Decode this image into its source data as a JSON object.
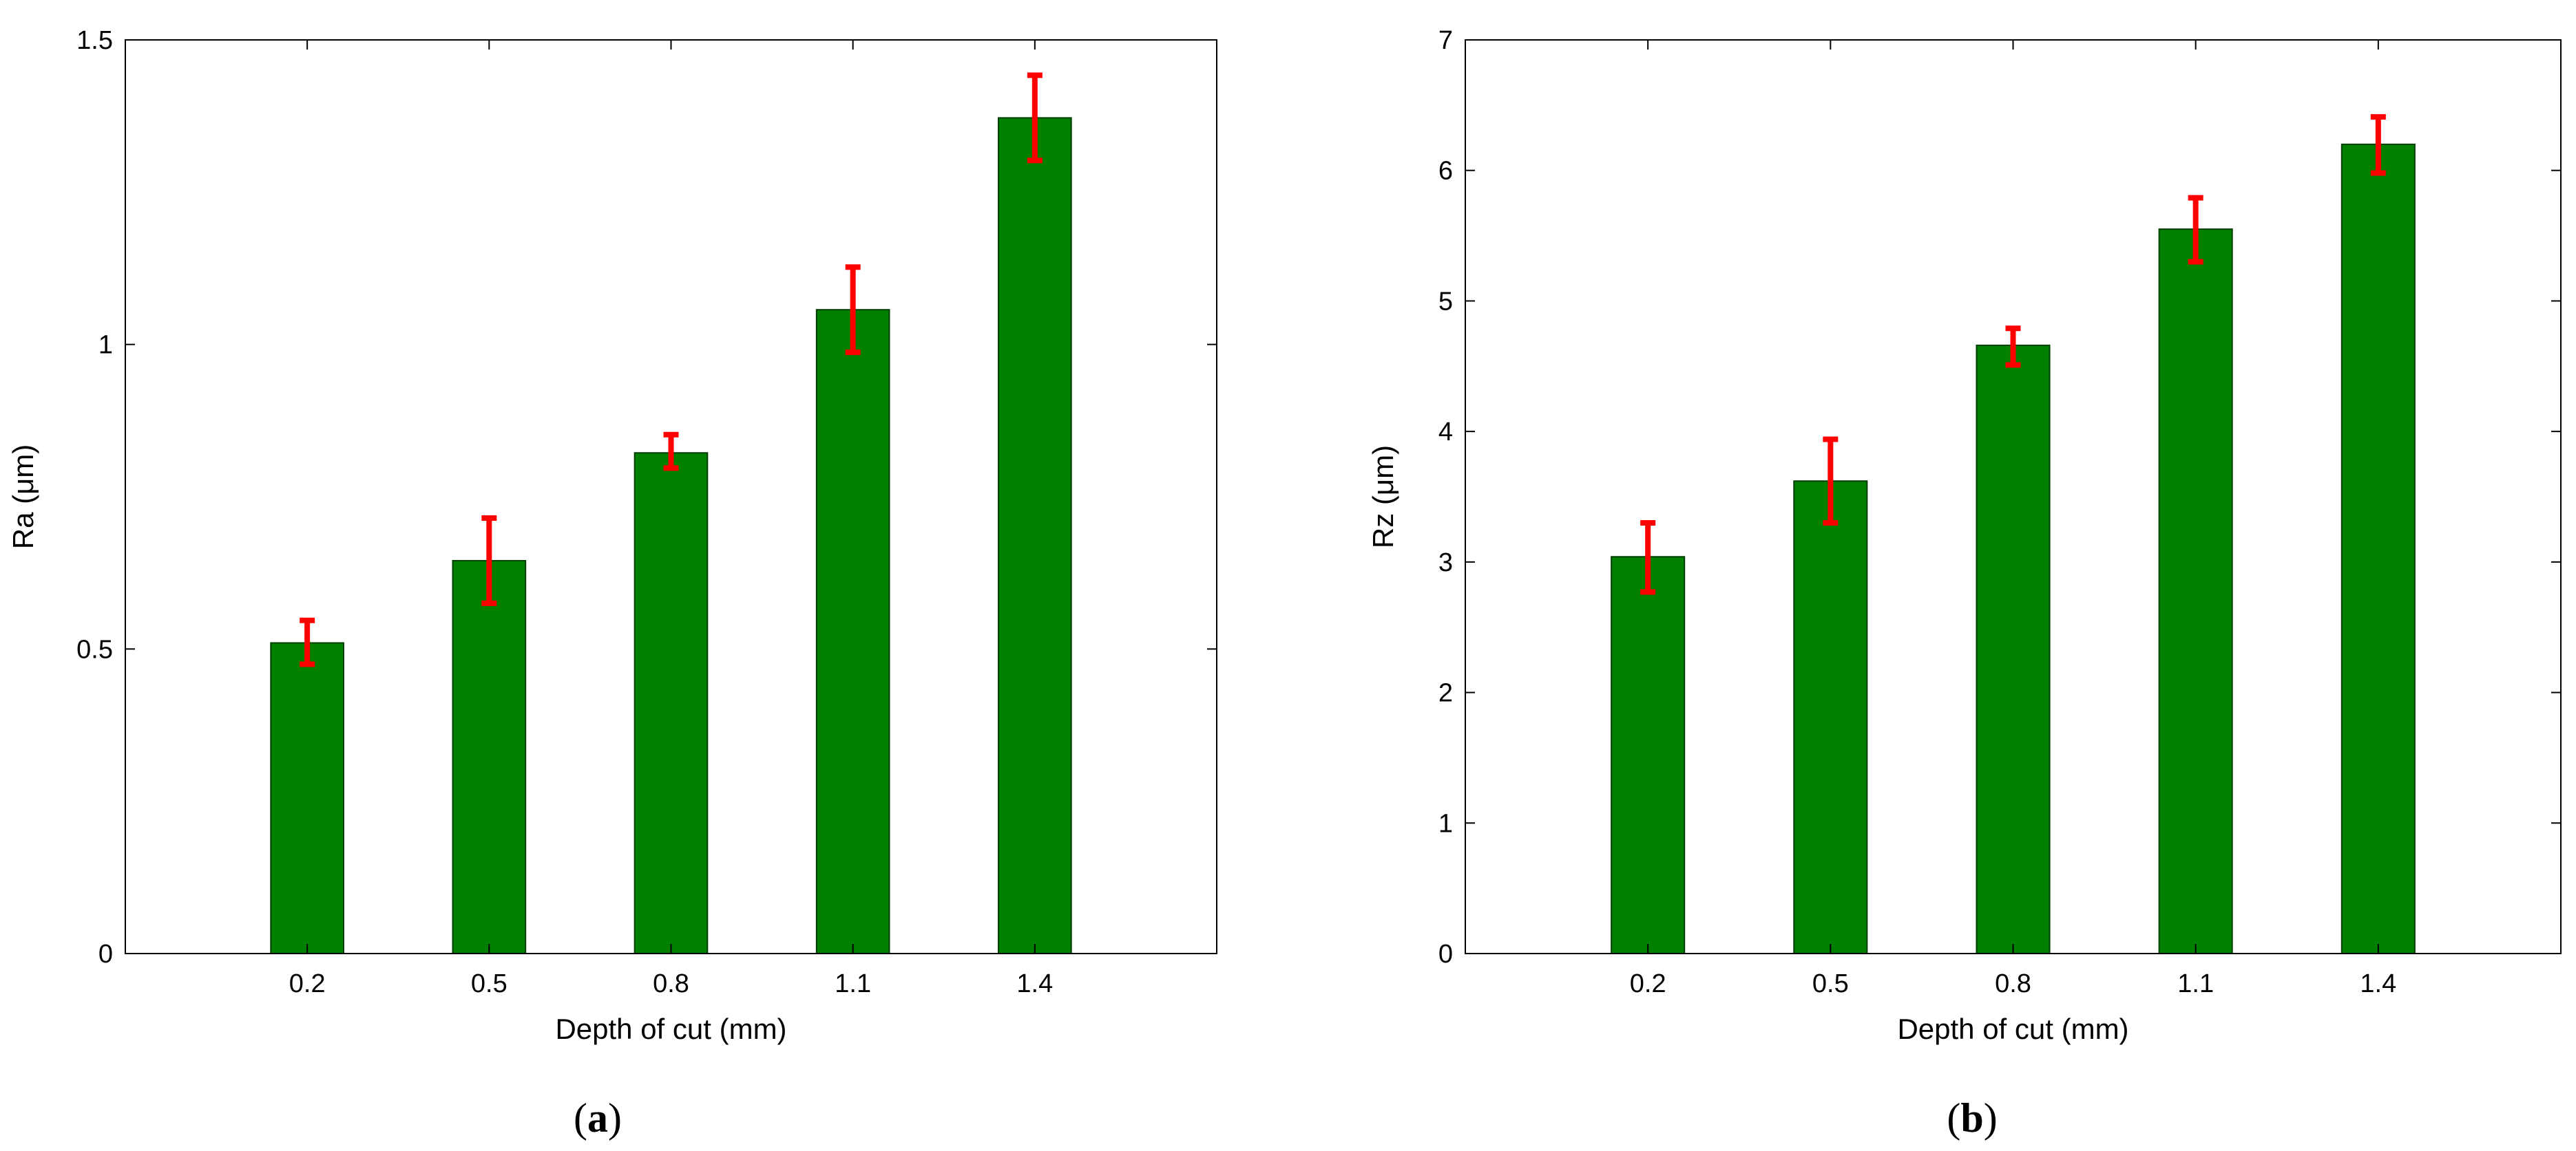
{
  "chart_data": [
    {
      "type": "bar",
      "panel_label": "a",
      "categories": [
        "0.2",
        "0.5",
        "0.8",
        "1.1",
        "1.4"
      ],
      "values": [
        0.51,
        0.645,
        0.822,
        1.057,
        1.372
      ],
      "error_low": [
        0.475,
        0.575,
        0.797,
        0.987,
        1.302
      ],
      "error_high": [
        0.547,
        0.715,
        0.852,
        1.127,
        1.442
      ],
      "xlabel": "Depth of cut (mm)",
      "ylabel": "Ra (μm)",
      "ylim": [
        0,
        1.5
      ],
      "yticks": [
        "0",
        "0.5",
        "1",
        "1.5"
      ],
      "bar_color": "#007f00",
      "error_color": "#ff0000",
      "grid": false
    },
    {
      "type": "bar",
      "panel_label": "b",
      "categories": [
        "0.2",
        "0.5",
        "0.8",
        "1.1",
        "1.4"
      ],
      "values": [
        3.04,
        3.62,
        4.66,
        5.55,
        6.2
      ],
      "error_low": [
        2.77,
        3.3,
        4.51,
        5.3,
        5.98
      ],
      "error_high": [
        3.3,
        3.94,
        4.79,
        5.79,
        6.41
      ],
      "xlabel": "Depth of cut (mm)",
      "ylabel": "Rz (μm)",
      "ylim": [
        0,
        7
      ],
      "yticks": [
        "0",
        "1",
        "2",
        "3",
        "4",
        "5",
        "6",
        "7"
      ],
      "bar_color": "#007f00",
      "error_color": "#ff0000",
      "grid": false
    }
  ]
}
